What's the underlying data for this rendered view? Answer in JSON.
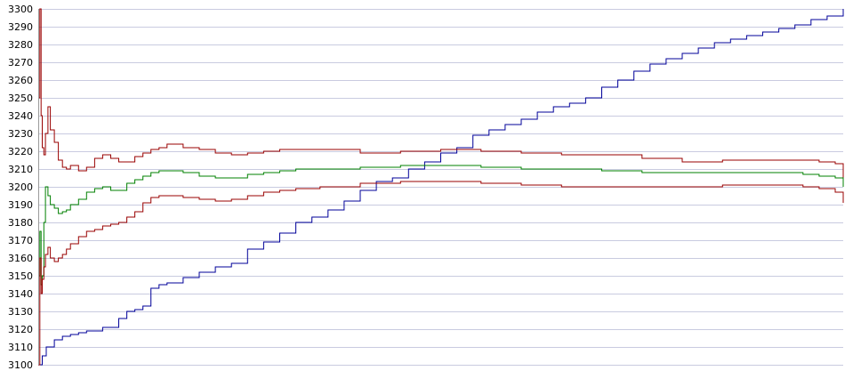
{
  "chart_data": {
    "type": "line",
    "title": "",
    "xlabel": "",
    "ylabel": "",
    "ylim": [
      3100,
      3300
    ],
    "xlim": [
      0,
      100
    ],
    "yticks": [
      3100,
      3110,
      3120,
      3130,
      3140,
      3150,
      3160,
      3170,
      3180,
      3190,
      3200,
      3210,
      3220,
      3230,
      3240,
      3250,
      3260,
      3270,
      3280,
      3290,
      3300
    ],
    "grid": true,
    "legend": "none",
    "series": [
      {
        "color": "#000099",
        "x": [
          0,
          0.5,
          1,
          2,
          3,
          4,
          5,
          6,
          8,
          10,
          11,
          12,
          13,
          14,
          15,
          16,
          18,
          20,
          22,
          24,
          26,
          28,
          30,
          32,
          34,
          36,
          38,
          40,
          42,
          44,
          46,
          48,
          50,
          52,
          54,
          56,
          58,
          60,
          62,
          64,
          66,
          68,
          70,
          72,
          74,
          76,
          78,
          80,
          82,
          84,
          86,
          88,
          90,
          92,
          94,
          96,
          98,
          100
        ],
        "y": [
          3100,
          3105,
          3110,
          3114,
          3116,
          3117,
          3118,
          3119,
          3121,
          3126,
          3130,
          3131,
          3133,
          3143,
          3145,
          3146,
          3149,
          3152,
          3155,
          3157,
          3165,
          3169,
          3174,
          3180,
          3183,
          3187,
          3192,
          3198,
          3203,
          3205,
          3210,
          3214,
          3219,
          3222,
          3229,
          3232,
          3235,
          3238,
          3242,
          3245,
          3247,
          3250,
          3256,
          3260,
          3265,
          3269,
          3272,
          3275,
          3278,
          3281,
          3283,
          3285,
          3287,
          3289,
          3291,
          3294,
          3296,
          3300
        ]
      },
      {
        "color": "#990000",
        "x": [
          0,
          0.2,
          0.35,
          0.5,
          0.7,
          0.9,
          1.2,
          1.5,
          2,
          2.5,
          3,
          3.5,
          4,
          5,
          6,
          7,
          8,
          9,
          10,
          11,
          12,
          13,
          14,
          15,
          16,
          18,
          20,
          22,
          24,
          26,
          28,
          30,
          32,
          35,
          40,
          45,
          50,
          55,
          60,
          65,
          70,
          75,
          80,
          85,
          90,
          95,
          97,
          99,
          100
        ],
        "y": [
          3250,
          3300,
          3240,
          3222,
          3218,
          3230,
          3245,
          3232,
          3225,
          3215,
          3211,
          3210,
          3212,
          3209,
          3211,
          3216,
          3218,
          3216,
          3214,
          3214,
          3217,
          3219,
          3221,
          3222,
          3224,
          3222,
          3221,
          3219,
          3218,
          3219,
          3220,
          3221,
          3221,
          3221,
          3219,
          3220,
          3221,
          3220,
          3219,
          3218,
          3218,
          3216,
          3214,
          3215,
          3215,
          3215,
          3214,
          3213,
          3205
        ]
      },
      {
        "color": "#008000",
        "x": [
          0,
          0.2,
          0.35,
          0.5,
          0.7,
          0.9,
          1.2,
          1.5,
          2,
          2.5,
          3,
          3.5,
          4,
          5,
          6,
          7,
          8,
          9,
          10,
          11,
          12,
          13,
          14,
          15,
          16,
          18,
          20,
          22,
          24,
          26,
          28,
          30,
          32,
          35,
          40,
          45,
          50,
          55,
          60,
          65,
          70,
          75,
          80,
          85,
          90,
          95,
          97,
          99,
          100
        ],
        "y": [
          3150,
          3175,
          3145,
          3150,
          3180,
          3200,
          3195,
          3190,
          3188,
          3185,
          3186,
          3187,
          3190,
          3193,
          3197,
          3199,
          3200,
          3198,
          3198,
          3202,
          3204,
          3206,
          3208,
          3209,
          3209,
          3208,
          3206,
          3205,
          3205,
          3207,
          3208,
          3209,
          3210,
          3210,
          3211,
          3212,
          3212,
          3211,
          3210,
          3210,
          3209,
          3208,
          3208,
          3208,
          3208,
          3207,
          3206,
          3205,
          3200
        ]
      },
      {
        "color": "#990000",
        "x": [
          0,
          0.2,
          0.35,
          0.5,
          0.7,
          0.9,
          1.2,
          1.5,
          2,
          2.5,
          3,
          3.5,
          4,
          5,
          6,
          7,
          8,
          9,
          10,
          11,
          12,
          13,
          14,
          15,
          16,
          18,
          20,
          22,
          24,
          26,
          28,
          30,
          32,
          35,
          40,
          45,
          50,
          55,
          60,
          65,
          70,
          75,
          80,
          85,
          90,
          95,
          97,
          99,
          100
        ],
        "y": [
          3100,
          3160,
          3140,
          3148,
          3155,
          3162,
          3166,
          3160,
          3158,
          3160,
          3162,
          3165,
          3168,
          3172,
          3175,
          3176,
          3178,
          3179,
          3180,
          3183,
          3186,
          3191,
          3194,
          3195,
          3195,
          3194,
          3193,
          3192,
          3193,
          3195,
          3197,
          3198,
          3199,
          3200,
          3202,
          3203,
          3203,
          3202,
          3201,
          3200,
          3200,
          3200,
          3200,
          3201,
          3201,
          3200,
          3199,
          3197,
          3191
        ]
      }
    ]
  }
}
